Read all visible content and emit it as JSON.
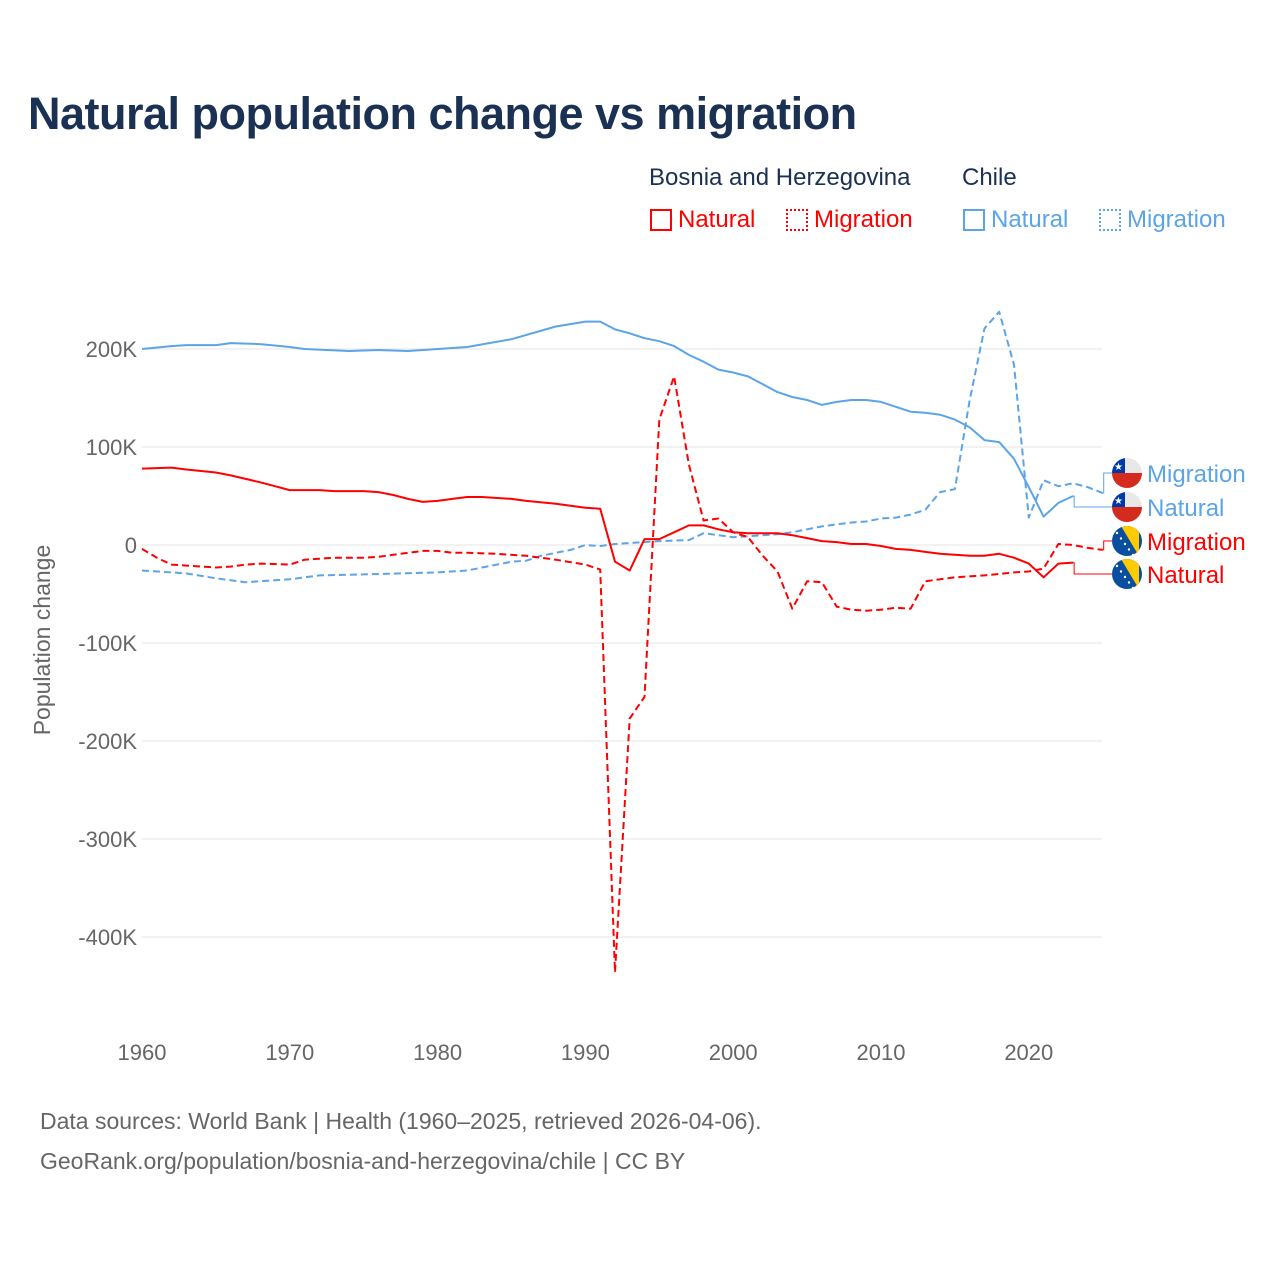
{
  "title": "Natural population change vs migration",
  "legend": {
    "groups": [
      {
        "name": "Bosnia and Herzegovina",
        "color": "#ff0000",
        "items": [
          "Natural",
          "Migration"
        ]
      },
      {
        "name": "Chile",
        "color": "#5ba4e8",
        "items": [
          "Natural",
          "Migration"
        ]
      }
    ]
  },
  "footer": {
    "line1": "Data sources: World Bank | Health (1960–2025, retrieved 2026-04-06).",
    "line2": "GeoRank.org/population/bosnia-and-herzegovina/chile | CC BY"
  },
  "chart_data": {
    "type": "line",
    "title": "Natural population change vs migration",
    "xlabel": "",
    "ylabel": "Population change",
    "xlim": [
      1960,
      2025
    ],
    "ylim": [
      -450000,
      250000
    ],
    "xticks": [
      1960,
      1970,
      1980,
      1990,
      2000,
      2010,
      2020
    ],
    "xtick_labels": [
      "1960",
      "1970",
      "1980",
      "1990",
      "2000",
      "2010",
      "2020"
    ],
    "yticks": [
      200000,
      100000,
      0,
      -100000,
      -200000,
      -300000,
      -400000
    ],
    "ytick_labels": [
      "200K",
      "100K",
      "0",
      "-100K",
      "-200K",
      "-300K",
      "-400K"
    ],
    "grid": true,
    "legend_position": "top-right",
    "series": [
      {
        "name": "Chile Migration",
        "label": "Migration",
        "country": "Chile",
        "color": "#5ba4e8",
        "dash": true,
        "x": [
          1960,
          1963,
          1965,
          1967,
          1970,
          1972,
          1975,
          1980,
          1982,
          1985,
          1986,
          1987,
          1989,
          1990,
          1991,
          1992,
          1993,
          1995,
          1997,
          1998,
          1999,
          2000,
          2001,
          2002,
          2003,
          2004,
          2005,
          2006,
          2007,
          2008,
          2009,
          2010,
          2011,
          2012,
          2013,
          2014,
          2015,
          2016,
          2017,
          2018,
          2019,
          2020,
          2021,
          2022,
          2023,
          2024,
          2025
        ],
        "y": [
          -26,
          -29,
          -34,
          -38,
          -35,
          -31,
          -30,
          -28,
          -26,
          -17,
          -16,
          -11,
          -5,
          0,
          -1,
          1,
          2,
          4,
          5,
          12,
          10,
          8,
          9,
          10,
          11,
          13,
          16,
          19,
          21,
          23,
          24,
          27,
          28,
          31,
          36,
          54,
          57,
          148,
          221,
          238,
          184,
          28,
          66,
          60,
          63,
          59,
          53
        ]
      },
      {
        "name": "Chile Natural",
        "label": "Natural",
        "country": "Chile",
        "color": "#5ba4e8",
        "dash": false,
        "x": [
          1960,
          1962,
          1963,
          1965,
          1966,
          1968,
          1970,
          1971,
          1974,
          1976,
          1978,
          1980,
          1982,
          1985,
          1988,
          1990,
          1991,
          1992,
          1993,
          1994,
          1995,
          1996,
          1997,
          1998,
          1999,
          2000,
          2001,
          2002,
          2003,
          2004,
          2005,
          2006,
          2007,
          2008,
          2009,
          2010,
          2011,
          2012,
          2013,
          2014,
          2015,
          2016,
          2017,
          2018,
          2019,
          2020,
          2021,
          2022,
          2023
        ],
        "y": [
          200,
          203,
          204,
          204,
          206,
          205,
          202,
          200,
          198,
          199,
          198,
          200,
          202,
          210,
          223,
          228,
          228,
          220,
          216,
          211,
          208,
          203,
          194,
          187,
          179,
          176,
          172,
          164,
          156,
          151,
          148,
          143,
          146,
          148,
          148,
          146,
          141,
          136,
          135,
          133,
          128,
          120,
          107,
          105,
          88,
          59,
          29,
          43,
          50
        ]
      },
      {
        "name": "Bosnia and Herzegovina Migration",
        "label": "Migration",
        "country": "Bosnia and Herzegovina",
        "color": "#ff0000",
        "dash": true,
        "x": [
          1960,
          1961,
          1962,
          1963,
          1965,
          1966,
          1967,
          1968,
          1970,
          1971,
          1972,
          1973,
          1975,
          1976,
          1977,
          1978,
          1979,
          1980,
          1981,
          1982,
          1984,
          1986,
          1988,
          1990,
          1991,
          1992,
          1993,
          1994,
          1995,
          1996,
          1997,
          1998,
          1999,
          2000,
          2001,
          2002,
          2003,
          2004,
          2005,
          2006,
          2007,
          2008,
          2009,
          2010,
          2011,
          2012,
          2013,
          2014,
          2015,
          2017,
          2019,
          2020,
          2021,
          2022,
          2023,
          2024,
          2025
        ],
        "y": [
          -4,
          -13,
          -20,
          -21,
          -23,
          -22,
          -20,
          -19,
          -20,
          -15,
          -14,
          -13,
          -13,
          -12,
          -10,
          -8,
          -6,
          -6,
          -8,
          -8,
          -9,
          -11,
          -15,
          -20,
          -25,
          -436,
          -177,
          -155,
          128,
          172,
          82,
          25,
          27,
          13,
          8,
          -11,
          -27,
          -65,
          -37,
          -38,
          -63,
          -66,
          -67,
          -66,
          -64,
          -65,
          -37,
          -35,
          -33,
          -31,
          -28,
          -27,
          -24,
          1,
          0,
          -3,
          -5
        ]
      },
      {
        "name": "Bosnia and Herzegovina Natural",
        "label": "Natural",
        "country": "Bosnia and Herzegovina",
        "color": "#ff0000",
        "dash": false,
        "x": [
          1960,
          1962,
          1963,
          1965,
          1966,
          1968,
          1969,
          1970,
          1972,
          1973,
          1975,
          1976,
          1977,
          1978,
          1979,
          1980,
          1981,
          1982,
          1983,
          1985,
          1986,
          1988,
          1990,
          1991,
          1992,
          1993,
          1994,
          1995,
          1996,
          1997,
          1998,
          1999,
          2000,
          2001,
          2002,
          2003,
          2004,
          2005,
          2006,
          2007,
          2008,
          2009,
          2010,
          2011,
          2012,
          2013,
          2014,
          2015,
          2016,
          2017,
          2018,
          2019,
          2020,
          2021,
          2022,
          2023
        ],
        "y": [
          78,
          79,
          77,
          74,
          71,
          64,
          60,
          56,
          56,
          55,
          55,
          54,
          51,
          47,
          44,
          45,
          47,
          49,
          49,
          47,
          45,
          42,
          38,
          37,
          -17,
          -26,
          6,
          6,
          13,
          20,
          20,
          16,
          13,
          12,
          12,
          12,
          10,
          7,
          4,
          3,
          1,
          1,
          -1,
          -4,
          -5,
          -7,
          -9,
          -10,
          -11,
          -11,
          -9,
          -13,
          -19,
          -33,
          -19,
          -18
        ]
      }
    ],
    "y_unit_multiplier": 1000
  }
}
